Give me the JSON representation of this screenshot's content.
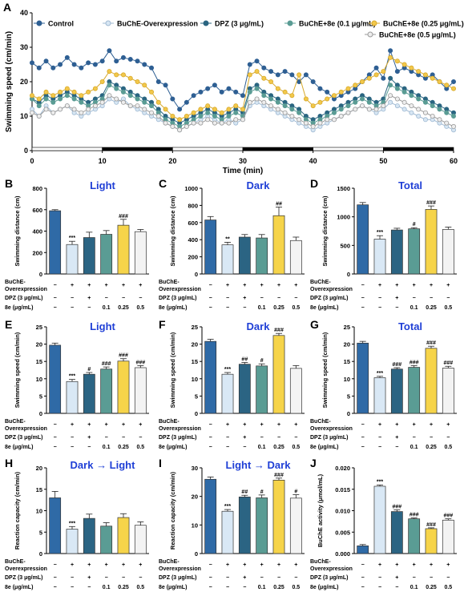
{
  "chart_data": [
    {
      "panel": "A",
      "type": "line",
      "ylabel": "Swimming speed (cm/min)",
      "xlabel": "Time (min)",
      "xlim": [
        0,
        60
      ],
      "ylim": [
        0,
        40
      ],
      "x_ticks": [
        0,
        10,
        20,
        30,
        40,
        50,
        60
      ],
      "y_ticks": [
        0,
        10,
        20,
        30,
        40
      ],
      "light_dark_bar": [
        {
          "from": 0,
          "to": 10,
          "phase": "light"
        },
        {
          "from": 10,
          "to": 20,
          "phase": "dark"
        },
        {
          "from": 20,
          "to": 30,
          "phase": "light"
        },
        {
          "from": 30,
          "to": 40,
          "phase": "dark"
        },
        {
          "from": 40,
          "to": 50,
          "phase": "light"
        },
        {
          "from": 50,
          "to": 60,
          "phase": "dark"
        }
      ],
      "series": [
        {
          "name": "Control",
          "color": "#2e5f93",
          "values": [
            25.5,
            24,
            26,
            24,
            25,
            27,
            25,
            24,
            25.5,
            25,
            26,
            29,
            26,
            27,
            26.5,
            26,
            25,
            24,
            20,
            19,
            15,
            12,
            14,
            16,
            17,
            18,
            19,
            17,
            18,
            17,
            16,
            25,
            26,
            24,
            23,
            22,
            23,
            22,
            20,
            22,
            20,
            18,
            17,
            15,
            16,
            17,
            18,
            20,
            22,
            24,
            21,
            29,
            23,
            24,
            23,
            22,
            21,
            22,
            20,
            18,
            20
          ]
        },
        {
          "name": "BuChE-Overexpression",
          "color": "#d7e6f3",
          "values": [
            12,
            10,
            13,
            11,
            12,
            13,
            11,
            10,
            11,
            12,
            13,
            15,
            14,
            15,
            13,
            12,
            11,
            10,
            9,
            8,
            7,
            6,
            7,
            8,
            9,
            10,
            9,
            8,
            9,
            8,
            9,
            13,
            14,
            13,
            12,
            11,
            10,
            9,
            8,
            7,
            6,
            7,
            8,
            9,
            10,
            11,
            12,
            13,
            12,
            11,
            12,
            14,
            13,
            12,
            11,
            10,
            9,
            9,
            8,
            7,
            6
          ]
        },
        {
          "name": "DPZ (3 μg/mL)",
          "color": "#2a6581",
          "values": [
            15,
            14,
            16,
            15,
            16,
            17,
            16,
            15,
            14,
            15,
            16,
            20,
            19,
            18,
            17,
            16,
            15,
            14,
            12,
            10,
            9,
            8,
            9,
            10,
            11,
            12,
            11,
            10,
            11,
            12,
            11,
            18,
            19,
            17,
            16,
            15,
            14,
            13,
            12,
            10,
            9,
            10,
            11,
            12,
            13,
            14,
            15,
            16,
            15,
            14,
            15,
            21,
            19,
            18,
            17,
            16,
            15,
            14,
            13,
            12,
            11
          ]
        },
        {
          "name": "BuChE+8e (0.1 μg/mL)",
          "color": "#5a9c94",
          "values": [
            15,
            13,
            15,
            14,
            15,
            16,
            15,
            14,
            13,
            14,
            15,
            19,
            18,
            17,
            16,
            15,
            14,
            13,
            11,
            9,
            8,
            7,
            8,
            9,
            10,
            11,
            10,
            9,
            10,
            11,
            10,
            17,
            18,
            16,
            15,
            14,
            13,
            12,
            11,
            9,
            8,
            9,
            10,
            11,
            12,
            13,
            14,
            15,
            14,
            13,
            14,
            19,
            18,
            17,
            16,
            15,
            14,
            13,
            12,
            11,
            10
          ]
        },
        {
          "name": "BuChE+8e (0.25 μg/mL)",
          "color": "#f2c84b",
          "values": [
            16,
            15,
            17,
            16,
            17,
            18,
            17,
            16,
            17,
            18,
            20,
            23,
            22,
            22,
            21,
            20,
            19,
            17,
            14,
            12,
            10,
            9,
            10,
            11,
            12,
            13,
            12,
            11,
            12,
            13,
            12,
            22,
            23,
            21,
            20,
            18,
            17,
            16,
            22,
            15,
            13,
            14,
            15,
            16,
            17,
            18,
            19,
            20,
            21,
            22,
            23,
            27,
            26,
            25,
            24,
            23,
            22,
            21,
            20,
            19,
            18
          ]
        },
        {
          "name": "BuChE+8e (0.5 μg/mL)",
          "color": "#eeeeee",
          "values": [
            11,
            10,
            12,
            11,
            12,
            13,
            12,
            11,
            12,
            13,
            14,
            16,
            15,
            14,
            13,
            13,
            12,
            11,
            10,
            8,
            7,
            6,
            7,
            8,
            8,
            9,
            8,
            8,
            8,
            9,
            9,
            14,
            15,
            14,
            13,
            12,
            11,
            10,
            9,
            8,
            7,
            8,
            9,
            9,
            10,
            11,
            12,
            13,
            12,
            12,
            13,
            16,
            15,
            14,
            13,
            12,
            11,
            10,
            9,
            8,
            7
          ]
        }
      ]
    },
    {
      "panel": "B",
      "type": "bar",
      "title": "Light",
      "ylabel": "Swimming distance (cm)",
      "ylim": [
        0,
        800
      ],
      "yticks": [
        0,
        200,
        400,
        600,
        800
      ],
      "values": [
        590,
        275,
        340,
        370,
        455,
        395
      ],
      "errors": [
        10,
        30,
        50,
        35,
        55,
        20
      ],
      "significance": [
        "",
        "***",
        "",
        "",
        "###",
        ""
      ]
    },
    {
      "panel": "C",
      "type": "bar",
      "title": "Dark",
      "ylabel": "Swimming distance (cm)",
      "ylim": [
        0,
        1000
      ],
      "yticks": [
        0,
        200,
        400,
        600,
        800,
        1000
      ],
      "values": [
        630,
        340,
        430,
        420,
        680,
        390
      ],
      "errors": [
        40,
        30,
        30,
        40,
        100,
        40
      ],
      "significance": [
        "",
        "**",
        "",
        "",
        "##",
        ""
      ]
    },
    {
      "panel": "D",
      "type": "bar",
      "title": "Total",
      "ylabel": "Swimming distance (cm)",
      "ylim": [
        0,
        1500
      ],
      "yticks": [
        0,
        500,
        1000,
        1500
      ],
      "values": [
        1210,
        610,
        770,
        790,
        1130,
        780
      ],
      "errors": [
        40,
        60,
        30,
        20,
        60,
        40
      ],
      "significance": [
        "",
        "***",
        "",
        "#",
        "###",
        ""
      ]
    },
    {
      "panel": "E",
      "type": "bar",
      "title": "Light",
      "ylabel": "Swimming speed (cm/min)",
      "ylim": [
        0,
        25
      ],
      "yticks": [
        0,
        5,
        10,
        15,
        20,
        25
      ],
      "values": [
        19.7,
        9.2,
        11.3,
        12.8,
        15.1,
        13.2
      ],
      "errors": [
        0.6,
        0.6,
        0.5,
        0.6,
        0.7,
        0.6
      ],
      "significance": [
        "",
        "***",
        "#",
        "###",
        "###",
        "###"
      ]
    },
    {
      "panel": "F",
      "type": "bar",
      "title": "Dark",
      "ylabel": "Swimming speed (cm/min)",
      "ylim": [
        0,
        25
      ],
      "yticks": [
        0,
        5,
        10,
        15,
        20,
        25
      ],
      "values": [
        20.8,
        11.3,
        14.2,
        13.7,
        22.5,
        13.0
      ],
      "errors": [
        0.6,
        0.5,
        0.5,
        0.6,
        0.6,
        0.8
      ],
      "significance": [
        "",
        "***",
        "##",
        "#",
        "###",
        ""
      ]
    },
    {
      "panel": "G",
      "type": "bar",
      "title": "Total",
      "ylabel": "Swimming speed (cm/min)",
      "ylim": [
        0,
        25
      ],
      "yticks": [
        0,
        5,
        10,
        15,
        20,
        25
      ],
      "values": [
        20.3,
        10.3,
        12.8,
        13.3,
        18.8,
        13.1
      ],
      "errors": [
        0.5,
        0.4,
        0.4,
        0.5,
        0.6,
        0.5
      ],
      "significance": [
        "",
        "***",
        "###",
        "###",
        "###",
        "###"
      ]
    },
    {
      "panel": "H",
      "type": "bar",
      "title": "Dark → Light",
      "ylabel": "Reaction capacity (cm/min)",
      "ylim": [
        0,
        20
      ],
      "yticks": [
        0,
        5,
        10,
        15,
        20
      ],
      "values": [
        13.0,
        5.7,
        8.2,
        6.4,
        8.4,
        6.6
      ],
      "errors": [
        1.5,
        0.6,
        1.0,
        0.8,
        0.9,
        0.8
      ],
      "significance": [
        "",
        "***",
        "",
        "",
        "",
        ""
      ]
    },
    {
      "panel": "I",
      "type": "bar",
      "title": "Light → Dark",
      "ylabel": "Reaction capacity (cm/min)",
      "ylim": [
        0,
        30
      ],
      "yticks": [
        0,
        10,
        20,
        30
      ],
      "values": [
        26.0,
        14.8,
        19.8,
        19.5,
        25.7,
        19.4
      ],
      "errors": [
        0.8,
        0.6,
        0.6,
        1.0,
        0.7,
        1.2
      ],
      "significance": [
        "",
        "***",
        "##",
        "#",
        "###",
        "#"
      ]
    },
    {
      "panel": "J",
      "type": "bar",
      "title": "",
      "ylabel": "BuChE activity (μmol/mL)",
      "ylim": [
        0,
        0.02
      ],
      "yticks": [
        "0.000",
        "0.005",
        "0.010",
        "0.015",
        "0.020"
      ],
      "values": [
        0.0018,
        0.0157,
        0.0098,
        0.0081,
        0.0058,
        0.0078
      ],
      "errors": [
        0.0003,
        0.0003,
        0.0004,
        0.0002,
        0.0002,
        0.0003
      ],
      "significance": [
        "",
        "***",
        "###",
        "###",
        "###",
        "###"
      ]
    }
  ],
  "bar_colors": [
    "#2f6aa6",
    "#d9e8f5",
    "#2b6483",
    "#5a9c94",
    "#f6d44a",
    "#f3f3f3"
  ],
  "title_color": "#1f3fd6",
  "group_table": {
    "row_labels": [
      "BuChE-",
      "Overexpression",
      "DPZ (3 μg/mL)",
      "8e (μg/mL)"
    ],
    "buche_row": [
      "−",
      "+",
      "+",
      "+",
      "+",
      "+"
    ],
    "dpz_row": [
      "−",
      "−",
      "+",
      "−",
      "−",
      "−"
    ],
    "e8_row": [
      "−",
      "−",
      "−",
      "0.1",
      "0.25",
      "0.5"
    ]
  },
  "panel_letters": [
    "A",
    "B",
    "C",
    "D",
    "E",
    "F",
    "G",
    "H",
    "I",
    "J"
  ]
}
